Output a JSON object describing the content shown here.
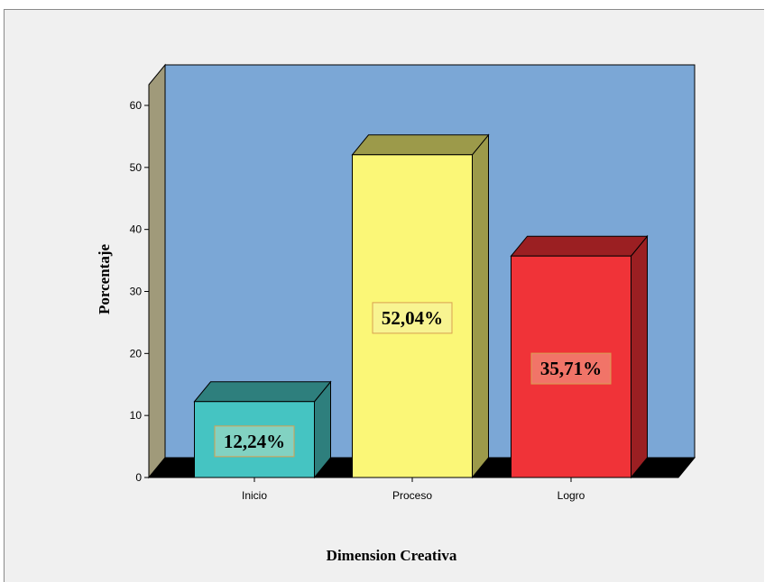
{
  "chart_data": {
    "type": "bar",
    "categories": [
      "Inicio",
      "Proceso",
      "Logro"
    ],
    "values": [
      12.24,
      52.04,
      35.71
    ],
    "data_labels": [
      "12,24%",
      "52,04%",
      "35,71%"
    ],
    "xlabel": "Dimension  Creativa",
    "ylabel": "Porcentaje",
    "ylim": [
      0,
      60
    ],
    "yticks": [
      "0",
      "10",
      "20",
      "30",
      "40",
      "50",
      "60"
    ],
    "grid": false,
    "legend": "none",
    "style": "3d",
    "colors": {
      "background_wall": "#7ba7d6",
      "side_wall": "#a09a7a",
      "floor": "#000000",
      "bars": [
        {
          "front": "#45c4c2",
          "top": "#2e7f7d",
          "side": "#2e7f7d"
        },
        {
          "front": "#fbf777",
          "top": "#9c9a4a",
          "side": "#9c9a4a"
        },
        {
          "front": "#f03338",
          "top": "#9b1f22",
          "side": "#9b1f22"
        }
      ],
      "label_box_fill": "#f3eec4",
      "label_box_stroke": "#d8a050"
    }
  }
}
